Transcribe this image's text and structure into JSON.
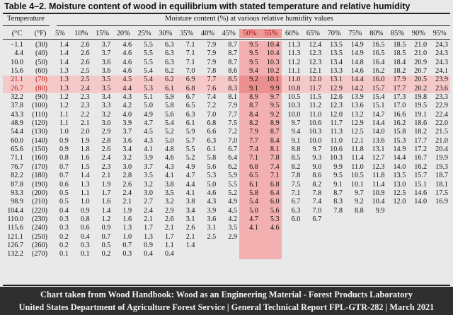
{
  "title": "Table 4–2. Moisture content of wood in equilibrium with stated temperature and relative humidity",
  "header": {
    "temperature_label": "Temperature",
    "moisture_label": "Moisture content (%) at various relative humidity values",
    "unit_c": "(°C",
    "unit_f": "(°F)"
  },
  "humidity_columns": [
    "5%",
    "10%",
    "15%",
    "20%",
    "25%",
    "30%",
    "35%",
    "40%",
    "45%",
    "50%",
    "55%",
    "60%",
    "65%",
    "70%",
    "75%",
    "80%",
    "85%",
    "90%",
    "95%"
  ],
  "highlight": {
    "columns": [
      "50%",
      "55%"
    ],
    "rows": [
      "21.1",
      "26.7"
    ]
  },
  "rows": [
    {
      "c": "−1.1",
      "f": "(30)",
      "v": [
        "1.4",
        "2.6",
        "3.7",
        "4.6",
        "5.5",
        "6.3",
        "7.1",
        "7.9",
        "8.7",
        "9.5",
        "10.4",
        "11.3",
        "12.4",
        "13.5",
        "14.9",
        "16.5",
        "18.5",
        "21.0",
        "24.3"
      ]
    },
    {
      "c": "4.4",
      "f": "(40)",
      "v": [
        "1.4",
        "2.6",
        "3.7",
        "4.6",
        "5.5",
        "6.3",
        "7.1",
        "7.9",
        "8.7",
        "9.5",
        "10.4",
        "11.3",
        "12.3",
        "13.5",
        "14.9",
        "16.5",
        "18.5",
        "21.0",
        "24.3"
      ]
    },
    {
      "c": "10.0",
      "f": "(50)",
      "v": [
        "1.4",
        "2.6",
        "3.6",
        "4.6",
        "5.5",
        "6.3",
        "7.1",
        "7.9",
        "8.7",
        "9.5",
        "10.3",
        "11.2",
        "12.3",
        "13.4",
        "14.8",
        "16.4",
        "18.4",
        "20.9",
        "24.3"
      ]
    },
    {
      "c": "15.6",
      "f": "(60)",
      "v": [
        "1.3",
        "2.5",
        "3.6",
        "4.6",
        "5.4",
        "6.2",
        "7.0",
        "7.8",
        "8.6",
        "9.4",
        "10.2",
        "11.1",
        "12.1",
        "13.3",
        "14.6",
        "16.2",
        "18.2",
        "20.7",
        "24.1"
      ]
    },
    {
      "c": "21.1",
      "f": "(70)",
      "v": [
        "1.3",
        "2.5",
        "3.5",
        "4.5",
        "5.4",
        "6.2",
        "6.9",
        "7.7",
        "8.5",
        "9.2",
        "10.1",
        "11.0",
        "12.0",
        "13.1",
        "14.4",
        "16.0",
        "17.9",
        "20.5",
        "23.9"
      ]
    },
    {
      "c": "26.7",
      "f": "(80)",
      "v": [
        "1.3",
        "2.4",
        "3.5",
        "4.4",
        "5.3",
        "6.1",
        "6.8",
        "7.6",
        "8.3",
        "9.1",
        "9.9",
        "10.8",
        "11.7",
        "12.9",
        "14.2",
        "15.7",
        "17.7",
        "20.2",
        "23.6"
      ]
    },
    {
      "c": "32.2",
      "f": "(90)",
      "v": [
        "1.2",
        "2.3",
        "3.4",
        "4.3",
        "5.1",
        "5.9",
        "6.7",
        "7.4",
        "8.1",
        "8.9",
        "9.7",
        "10.5",
        "11.5",
        "12.6",
        "13.9",
        "15.4",
        "17.3",
        "19.8",
        "23.3"
      ]
    },
    {
      "c": "37.8",
      "f": "(100)",
      "v": [
        "1.2",
        "2.3",
        "3.3",
        "4.2",
        "5.0",
        "5.8",
        "6.5",
        "7.2",
        "7.9",
        "8.7",
        "9.5",
        "10.3",
        "11.2",
        "12.3",
        "13.6",
        "15.1",
        "17.0",
        "19.5",
        "22.9"
      ]
    },
    {
      "c": "43.3",
      "f": "(110)",
      "v": [
        "1.1",
        "2.2",
        "3.2",
        "4.0",
        "4.9",
        "5.6",
        "6.3",
        "7.0",
        "7.7",
        "8.4",
        "9.2",
        "10.0",
        "11.0",
        "12.0",
        "13.2",
        "14.7",
        "16.6",
        "19.1",
        "22.4"
      ]
    },
    {
      "c": "48.9",
      "f": "(120)",
      "v": [
        "1.1",
        "2.1",
        "3.0",
        "3.9",
        "4.7",
        "5.4",
        "6.1",
        "6.8",
        "7.5",
        "8.2",
        "8.9",
        "9.7",
        "10.6",
        "11.7",
        "12.9",
        "14.4",
        "16.2",
        "18.6",
        "22.0"
      ]
    },
    {
      "c": "54.4",
      "f": "(130)",
      "v": [
        "1.0",
        "2.0",
        "2.9",
        "3.7",
        "4.5",
        "5.2",
        "5.9",
        "6.6",
        "7.2",
        "7.9",
        "8.7",
        "9.4",
        "10.3",
        "11.3",
        "12.5",
        "14.0",
        "15.8",
        "18.2",
        "21.5"
      ]
    },
    {
      "c": "60.0",
      "f": "(140)",
      "v": [
        "0.9",
        "1.9",
        "2.8",
        "3.6",
        "4.3",
        "5.0",
        "5.7",
        "6.3",
        "7.0",
        "7.7",
        "8.4",
        "9.1",
        "10.0",
        "11.0",
        "12.1",
        "13.6",
        "15.3",
        "17.7",
        "21.0"
      ]
    },
    {
      "c": "65.6",
      "f": "(150)",
      "v": [
        "0.9",
        "1.8",
        "2.6",
        "3.4",
        "4.1",
        "4.8",
        "5.5",
        "6.1",
        "6.7",
        "7.4",
        "8.1",
        "8.8",
        "9.7",
        "10.6",
        "11.8",
        "13.1",
        "14.9",
        "17.2",
        "20.4"
      ]
    },
    {
      "c": "71.1",
      "f": "(160)",
      "v": [
        "0.8",
        "1.6",
        "2.4",
        "3.2",
        "3.9",
        "4.6",
        "5.2",
        "5.8",
        "6.4",
        "7.1",
        "7.8",
        "8.5",
        "9.3",
        "10.3",
        "11.4",
        "12.7",
        "14.4",
        "16.7",
        "19.9"
      ]
    },
    {
      "c": "76.7",
      "f": "(170)",
      "v": [
        "0.7",
        "1.5",
        "2.3",
        "3.0",
        "3.7",
        "4.3",
        "4.9",
        "5.6",
        "6.2",
        "6.8",
        "7.4",
        "8.2",
        "9.0",
        "9.9",
        "11.0",
        "12.3",
        "14.0",
        "16.2",
        "19.3"
      ]
    },
    {
      "c": "82.2",
      "f": "(180)",
      "v": [
        "0.7",
        "1.4",
        "2.1",
        "2.8",
        "3.5",
        "4.1",
        "4.7",
        "5.3",
        "5.9",
        "6.5",
        "7.1",
        "7.8",
        "8.6",
        "9.5",
        "10.5",
        "11.8",
        "13.5",
        "15.7",
        "18.7"
      ]
    },
    {
      "c": "87.8",
      "f": "(190)",
      "v": [
        "0.6",
        "1.3",
        "1.9",
        "2.6",
        "3.2",
        "3.8",
        "4.4",
        "5.0",
        "5.5",
        "6.1",
        "6.8",
        "7.5",
        "8.2",
        "9.1",
        "10.1",
        "11.4",
        "13.0",
        "15.1",
        "18.1"
      ]
    },
    {
      "c": "93.3",
      "f": "(200)",
      "v": [
        "0.5",
        "1.1",
        "1.7",
        "2.4",
        "3.0",
        "3.5",
        "4.1",
        "4.6",
        "5.2",
        "5.8",
        "6.4",
        "7.1",
        "7.8",
        "8.7",
        "9.7",
        "10.9",
        "12.5",
        "14.6",
        "17.5"
      ]
    },
    {
      "c": "98.9",
      "f": "(210)",
      "v": [
        "0.5",
        "1.0",
        "1.6",
        "2.1",
        "2.7",
        "3.2",
        "3.8",
        "4.3",
        "4.9",
        "5.4",
        "6.0",
        "6.7",
        "7.4",
        "8.3",
        "9.2",
        "10.4",
        "12.0",
        "14.0",
        "16.9"
      ]
    },
    {
      "c": "104.4",
      "f": "(220)",
      "v": [
        "0.4",
        "0.9",
        "1.4",
        "1.9",
        "2.4",
        "2.9",
        "3.4",
        "3.9",
        "4.5",
        "5.0",
        "5.6",
        "6.3",
        "7.0",
        "7.8",
        "8.8",
        "9.9",
        "",
        "",
        ""
      ]
    },
    {
      "c": "110.0",
      "f": "(230)",
      "v": [
        "0.3",
        "0.8",
        "1.2",
        "1.6",
        "2.1",
        "2.6",
        "3.1",
        "3.6",
        "4.2",
        "4.7",
        "5.3",
        "6.0",
        "6.7",
        "",
        "",
        "",
        "",
        "",
        ""
      ]
    },
    {
      "c": "115.6",
      "f": "(240)",
      "v": [
        "0.3",
        "0.6",
        "0.9",
        "1.3",
        "1.7",
        "2.1",
        "2.6",
        "3.1",
        "3.5",
        "4.1",
        "4.6",
        "",
        "",
        "",
        "",
        "",
        "",
        "",
        ""
      ]
    },
    {
      "c": "121.1",
      "f": "(250)",
      "v": [
        "0.2",
        "0.4",
        "0.7",
        "1.0",
        "1.3",
        "1.7",
        "2.1",
        "2.5",
        "2.9",
        "",
        "",
        "",
        "",
        "",
        "",
        "",
        "",
        "",
        ""
      ]
    },
    {
      "c": "126.7",
      "f": "(260)",
      "v": [
        "0.2",
        "0.3",
        "0.5",
        "0.7",
        "0.9",
        "1.1",
        "1.4",
        "",
        "",
        "",
        "",
        "",
        "",
        "",
        "",
        "",
        "",
        "",
        ""
      ]
    },
    {
      "c": "132.2",
      "f": "(270)",
      "v": [
        "0.1",
        "0.1",
        "0.2",
        "0.3",
        "0.4",
        "0.4",
        "",
        "",
        "",
        "",
        "",
        "",
        "",
        "",
        "",
        "",
        "",
        "",
        ""
      ]
    }
  ],
  "caption": {
    "line1": "Chart taken from Wood Handbook: Wood as an Engineering Material - Forest Products Laboratory",
    "line2": "United States Department of Agriculture Forest Service | General Technical Report FPL-GTR-282 | March 2021"
  },
  "colors": {
    "highlight_light": "#f6c9c9",
    "highlight_strong": "#ec8f8f",
    "paper": "#e9e9e9",
    "caption_bg": "#2f2f2f"
  }
}
